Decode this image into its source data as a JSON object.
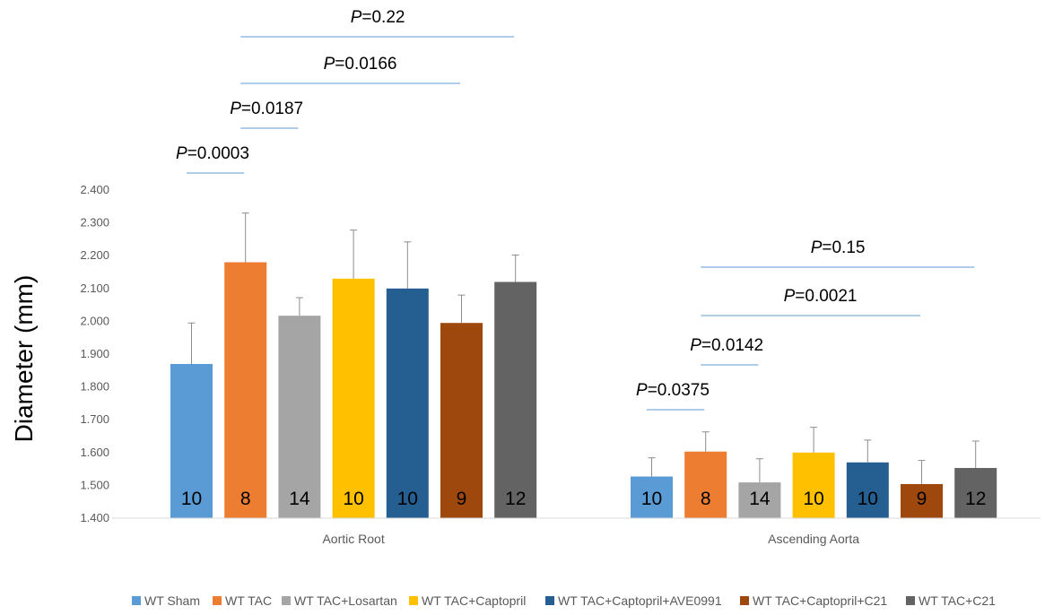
{
  "chart_data": {
    "type": "bar",
    "title": "",
    "ylabel": "Diameter (mm)",
    "xlabel": "",
    "ylim": [
      1.4,
      2.4
    ],
    "yticks": [
      "1.400",
      "1.500",
      "1.600",
      "1.700",
      "1.800",
      "1.900",
      "2.000",
      "2.100",
      "2.200",
      "2.300",
      "2.400"
    ],
    "grid": false,
    "legend_position": "bottom",
    "categories": [
      "Aortic Root",
      "Ascending Aorta"
    ],
    "series": [
      {
        "name": "WT Sham",
        "color": "#5B9BD5",
        "values": [
          1.87,
          1.527
        ],
        "errors": [
          0.125,
          0.057
        ],
        "n": [
          "10",
          "10"
        ]
      },
      {
        "name": "WT TAC",
        "color": "#ED7D31",
        "values": [
          2.18,
          1.603
        ],
        "errors": [
          0.15,
          0.06
        ],
        "n": [
          "8",
          "8"
        ]
      },
      {
        "name": "WT TAC+Losartan",
        "color": "#A5A5A5",
        "values": [
          2.017,
          1.509
        ],
        "errors": [
          0.055,
          0.072
        ],
        "n": [
          "14",
          "14"
        ]
      },
      {
        "name": "WT TAC+Captopril",
        "color": "#FFC000",
        "values": [
          2.13,
          1.6
        ],
        "errors": [
          0.148,
          0.077
        ],
        "n": [
          "10",
          "10"
        ]
      },
      {
        "name": "WT TAC+Captopril+AVE0991",
        "color": "#255E91",
        "values": [
          2.1,
          1.57
        ],
        "errors": [
          0.142,
          0.068
        ],
        "n": [
          "10",
          "10"
        ]
      },
      {
        "name": "WT TAC+Captopril+C21",
        "color": "#9E480E",
        "values": [
          1.995,
          1.504
        ],
        "errors": [
          0.085,
          0.072
        ],
        "n": [
          "9",
          "9"
        ]
      },
      {
        "name": "WT TAC+C21",
        "color": "#636363",
        "values": [
          2.12,
          1.553
        ],
        "errors": [
          0.082,
          0.082
        ],
        "n": [
          "12",
          "12"
        ]
      }
    ],
    "annotations": [
      {
        "prefix": "P",
        "text": "=0.0003",
        "category": 0,
        "from": 0,
        "to": 1,
        "level": 0
      },
      {
        "prefix": "P",
        "text": "=0.0187",
        "category": 0,
        "from": 1,
        "to": 2,
        "level": 1
      },
      {
        "prefix": "P",
        "text": "=0.0166",
        "category": 0,
        "from": 1,
        "to": 5,
        "level": 2
      },
      {
        "prefix": "P",
        "text": "=0.22",
        "category": 0,
        "from": 1,
        "to": 6,
        "level": 3
      },
      {
        "prefix": "P",
        "text": "=0.0375",
        "category": 1,
        "from": 0,
        "to": 1,
        "level": 0
      },
      {
        "prefix": "P",
        "text": "=0.0142",
        "category": 1,
        "from": 1,
        "to": 2,
        "level": 1
      },
      {
        "prefix": "P",
        "text": "=0.0021",
        "category": 1,
        "from": 1,
        "to": 5,
        "level": 2
      },
      {
        "prefix": "P",
        "text": "=0.15",
        "category": 1,
        "from": 1,
        "to": 6,
        "level": 3
      }
    ]
  }
}
